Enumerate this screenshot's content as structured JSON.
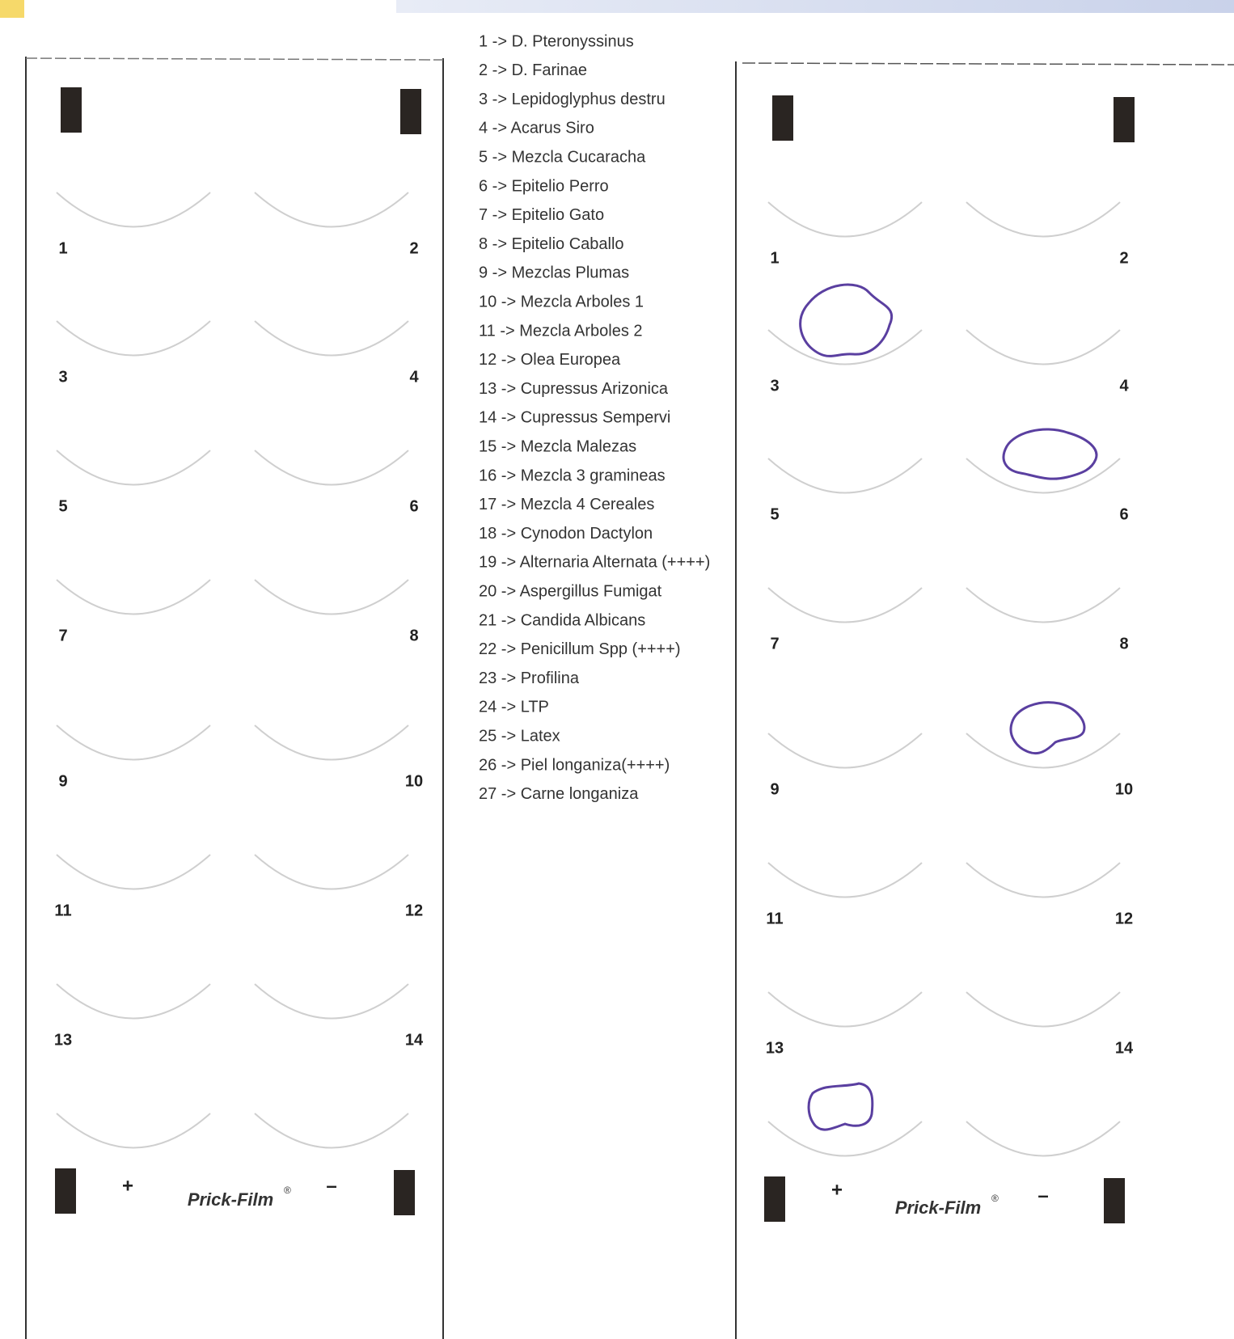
{
  "legend": [
    "1 -> D. Pteronyssinus",
    "2 -> D. Farinae",
    "3 -> Lepidoglyphus destru",
    "4 -> Acarus Siro",
    "5 -> Mezcla Cucaracha",
    "6 -> Epitelio Perro",
    "7 -> Epitelio Gato",
    "8 -> Epitelio Caballo",
    "9 -> Mezclas Plumas",
    "10 -> Mezcla Arboles 1",
    "11 -> Mezcla Arboles 2",
    "12 -> Olea Europea",
    "13 -> Cupressus Arizonica",
    "14 -> Cupressus Sempervi",
    "15 -> Mezcla Malezas",
    "16 -> Mezcla 3 gramineas",
    "17 -> Mezcla 4 Cereales",
    "18 -> Cynodon Dactylon",
    "19 -> Alternaria Alternata (++++)",
    "20 -> Aspergillus Fumigat",
    "21 -> Candida Albicans",
    "22 -> Penicillum Spp (++++)",
    "23 -> Profilina",
    "24 -> LTP",
    "25 -> Latex",
    "26 -> Piel longaniza(++++)",
    "27 -> Carne longaniza"
  ],
  "cards": [
    {
      "wells": [
        "1",
        "2",
        "3",
        "4",
        "5",
        "6",
        "7",
        "8",
        "9",
        "10",
        "11",
        "12",
        "13",
        "14"
      ],
      "plus": "+",
      "brand": "Prick-Film",
      "mark": "®",
      "minus": "–"
    },
    {
      "wells": [
        "1",
        "2",
        "3",
        "4",
        "5",
        "6",
        "7",
        "8",
        "9",
        "10",
        "11",
        "12",
        "13",
        "14"
      ],
      "plus": "+",
      "brand": "Prick-Film",
      "mark": "®",
      "minus": "–"
    }
  ]
}
